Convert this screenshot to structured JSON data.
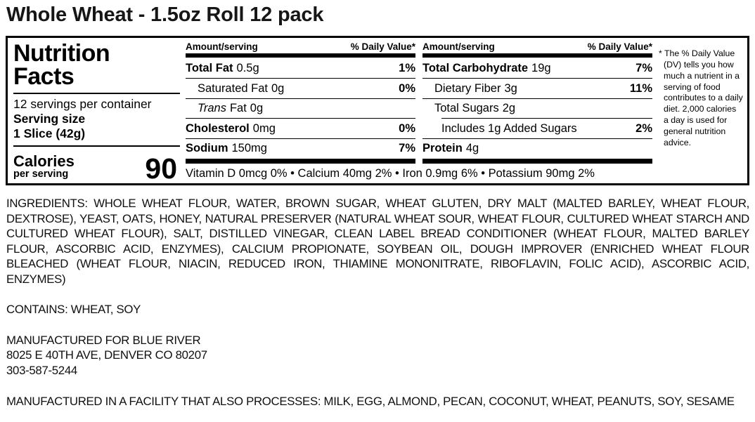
{
  "colors": {
    "text": "#000000",
    "background": "#ffffff"
  },
  "page_title": "Whole Wheat - 1.5oz Roll 12 pack",
  "nutrition_panel": {
    "title_line1": "Nutrition",
    "title_line2": "Facts",
    "servings_per_container": "12 servings per container",
    "serving_size_label": "Serving size",
    "serving_size_value": "1 Slice (42g)",
    "calories_label": "Calories",
    "calories_sublabel": "per serving",
    "calories_value": "90",
    "col_header_amount": "Amount/serving",
    "col_header_dv": "% Daily Value*",
    "mid_rows": [
      {
        "name": "Total Fat",
        "amount": "0.5g",
        "dv": "1%"
      },
      {
        "name": "Saturated Fat",
        "amount": "0g",
        "dv": "0%"
      },
      {
        "name_italic": "Trans",
        "name": "Fat",
        "amount": "0g"
      },
      {
        "name": "Cholesterol",
        "amount": "0mg",
        "dv": "0%"
      },
      {
        "name": "Sodium",
        "amount": "150mg",
        "dv": "7%"
      }
    ],
    "carb_rows": [
      {
        "name": "Total Carbohydrate",
        "amount": "19g",
        "dv": "7%"
      },
      {
        "name": "Dietary Fiber",
        "amount": "3g",
        "dv": "11%"
      },
      {
        "name": "Total Sugars",
        "amount": "2g"
      },
      {
        "name": "Includes 1g Added Sugars",
        "dv": "2%"
      },
      {
        "name": "Protein",
        "amount": "4g"
      }
    ],
    "micronutrients": "Vitamin D 0mcg 0% • Calcium 40mg 2% • Iron 0.9mg 6% • Potassium 90mg 2%",
    "footnote": "* The % Daily Value (DV) tells you how much a nutrient in a serving of food contributes to a daily diet. 2,000 calories a day is used for general nutrition advice."
  },
  "ingredients": "INGREDIENTS: WHOLE WHEAT FLOUR, WATER, BROWN SUGAR, WHEAT GLUTEN, DRY MALT (MALTED BARLEY, WHEAT FLOUR, DEXTROSE), YEAST, OATS, HONEY, NATURAL PRESERVER (NATURAL WHEAT SOUR, WHEAT FLOUR, CULTURED WHEAT STARCH AND CULTURED WHEAT FLOUR), SALT, DISTILLED VINEGAR, CLEAN LABEL BREAD CONDITIONER (WHEAT FLOUR, MALTED BARLEY FLOUR, ASCORBIC ACID, ENZYMES), CALCIUM PROPIONATE, SOYBEAN OIL, DOUGH IMPROVER (ENRICHED WHEAT FLOUR BLEACHED (WHEAT FLOUR, NIACIN, REDUCED IRON, THIAMINE MONONITRATE, RIBOFLAVIN, FOLIC ACID), ASCORBIC ACID, ENZYMES)",
  "contains": "CONTAINS: WHEAT, SOY",
  "manufacturer": {
    "line1": "MANUFACTURED FOR BLUE RIVER",
    "line2": "8025 E 40TH AVE, DENVER CO 80207",
    "line3": "303-587-5244"
  },
  "facility": "MANUFACTURED IN A FACILITY THAT ALSO PROCESSES: MILK, EGG, ALMOND, PECAN, COCONUT, WHEAT, PEANUTS, SOY, SESAME"
}
